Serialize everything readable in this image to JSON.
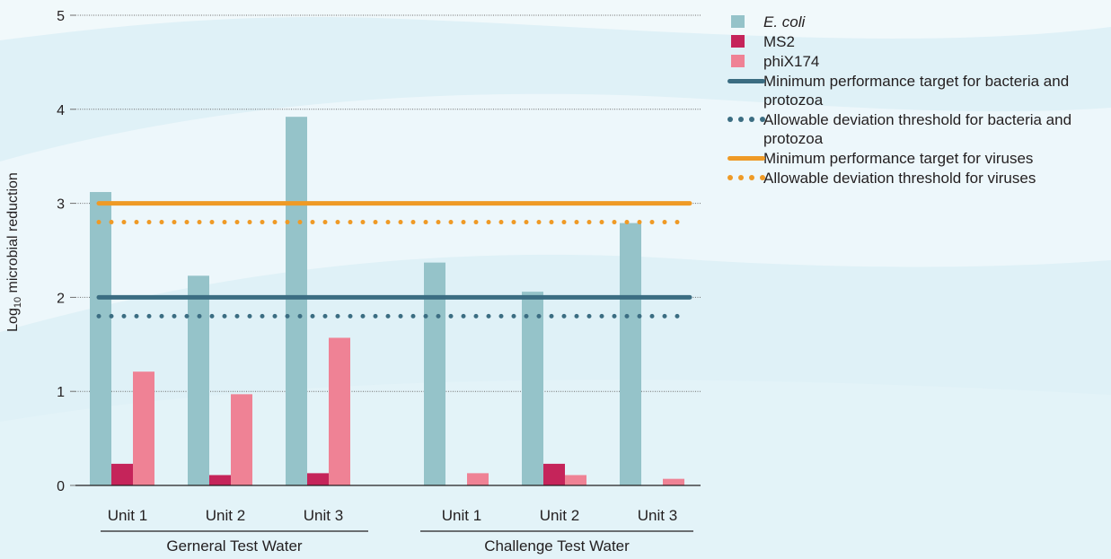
{
  "colors": {
    "ecoli": "#95c3c9",
    "ms2": "#c5245a",
    "phix": "#ef8295",
    "bacteria_line": "#3b6d82",
    "virus_line": "#ef9a26",
    "background": "#dff1f7"
  },
  "chart_data": {
    "type": "bar",
    "ylabel": "Log10 microbial reduction",
    "ylabel_main": "Log",
    "ylabel_sub": "10",
    "ylabel_rest": " microbial reduction",
    "ylim": [
      0,
      5
    ],
    "yticks": [
      "0",
      "1",
      "2",
      "3",
      "4",
      "5"
    ],
    "grid": true,
    "legend_position": "top-right",
    "groups": [
      {
        "label": "Gerneral Test Water",
        "categories": [
          "Unit 1",
          "Unit 2",
          "Unit 3"
        ]
      },
      {
        "label": "Challenge Test Water",
        "categories": [
          "Unit 1",
          "Unit 2",
          "Unit 3"
        ]
      }
    ],
    "series": [
      {
        "name": "E. coli",
        "color_key": "ecoli",
        "values": [
          3.12,
          2.23,
          3.92,
          2.37,
          2.06,
          2.79
        ]
      },
      {
        "name": "MS2",
        "color_key": "ms2",
        "values": [
          0.23,
          0.11,
          0.13,
          0,
          0.23,
          0
        ]
      },
      {
        "name": "phiX174",
        "color_key": "phix",
        "values": [
          1.21,
          0.97,
          1.57,
          0.13,
          0.11,
          0.07
        ]
      }
    ],
    "reference_lines": [
      {
        "name": "Minimum performance target for bacteria and protozoa",
        "value": 2.0,
        "style": "solid",
        "color_key": "bacteria_line"
      },
      {
        "name": "Allowable deviation threshold for bacteria and protozoa",
        "value": 1.8,
        "style": "dotted",
        "color_key": "bacteria_line"
      },
      {
        "name": "Minimum performance target for viruses",
        "value": 3.0,
        "style": "solid",
        "color_key": "virus_line"
      },
      {
        "name": "Allowable deviation threshold for viruses",
        "value": 2.8,
        "style": "dotted",
        "color_key": "virus_line"
      }
    ]
  },
  "legend": [
    {
      "label": "E. coli",
      "kind": "square",
      "color_key": "ecoli",
      "italic": true
    },
    {
      "label": "MS2",
      "kind": "square",
      "color_key": "ms2",
      "italic": false
    },
    {
      "label": "phiX174",
      "kind": "square",
      "color_key": "phix",
      "italic": false
    },
    {
      "label": "Minimum performance target for bacteria and protozoa",
      "kind": "line",
      "color_key": "bacteria_line",
      "italic": false
    },
    {
      "label": "Allowable deviation threshold for bacteria and protozoa",
      "kind": "dots",
      "color_key": "bacteria_line",
      "italic": false
    },
    {
      "label": "Minimum performance target for viruses",
      "kind": "line",
      "color_key": "virus_line",
      "italic": false
    },
    {
      "label": "Allowable deviation threshold for viruses",
      "kind": "dots",
      "color_key": "virus_line",
      "italic": false
    }
  ]
}
